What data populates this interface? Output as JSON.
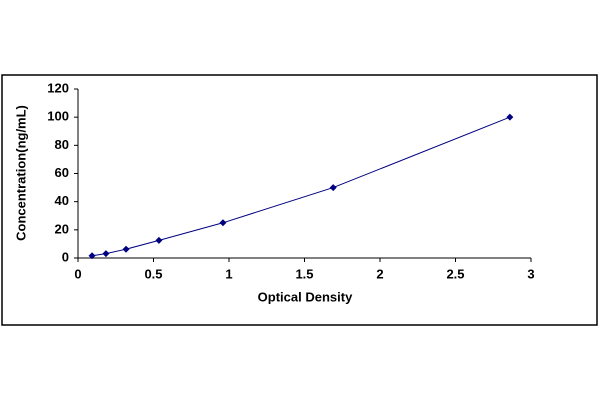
{
  "chart_data": {
    "type": "scatter",
    "x_label": "Optical Density",
    "y_label": "Concentration(ng/mL)",
    "x": [
      0.093,
      0.185,
      0.318,
      0.536,
      0.96,
      1.69,
      2.86
    ],
    "series": [
      {
        "color": "#000080",
        "values": [
          1.56,
          3.12,
          6.25,
          12.5,
          25,
          50,
          100
        ]
      }
    ],
    "xlim": [
      0,
      3
    ],
    "xticks": [
      0,
      0.5,
      1,
      1.5,
      2,
      2.5,
      3
    ],
    "ylim": [
      0,
      120
    ],
    "yticks": [
      0,
      20,
      40,
      60,
      80,
      100,
      120
    ],
    "grid": false,
    "line": true
  }
}
